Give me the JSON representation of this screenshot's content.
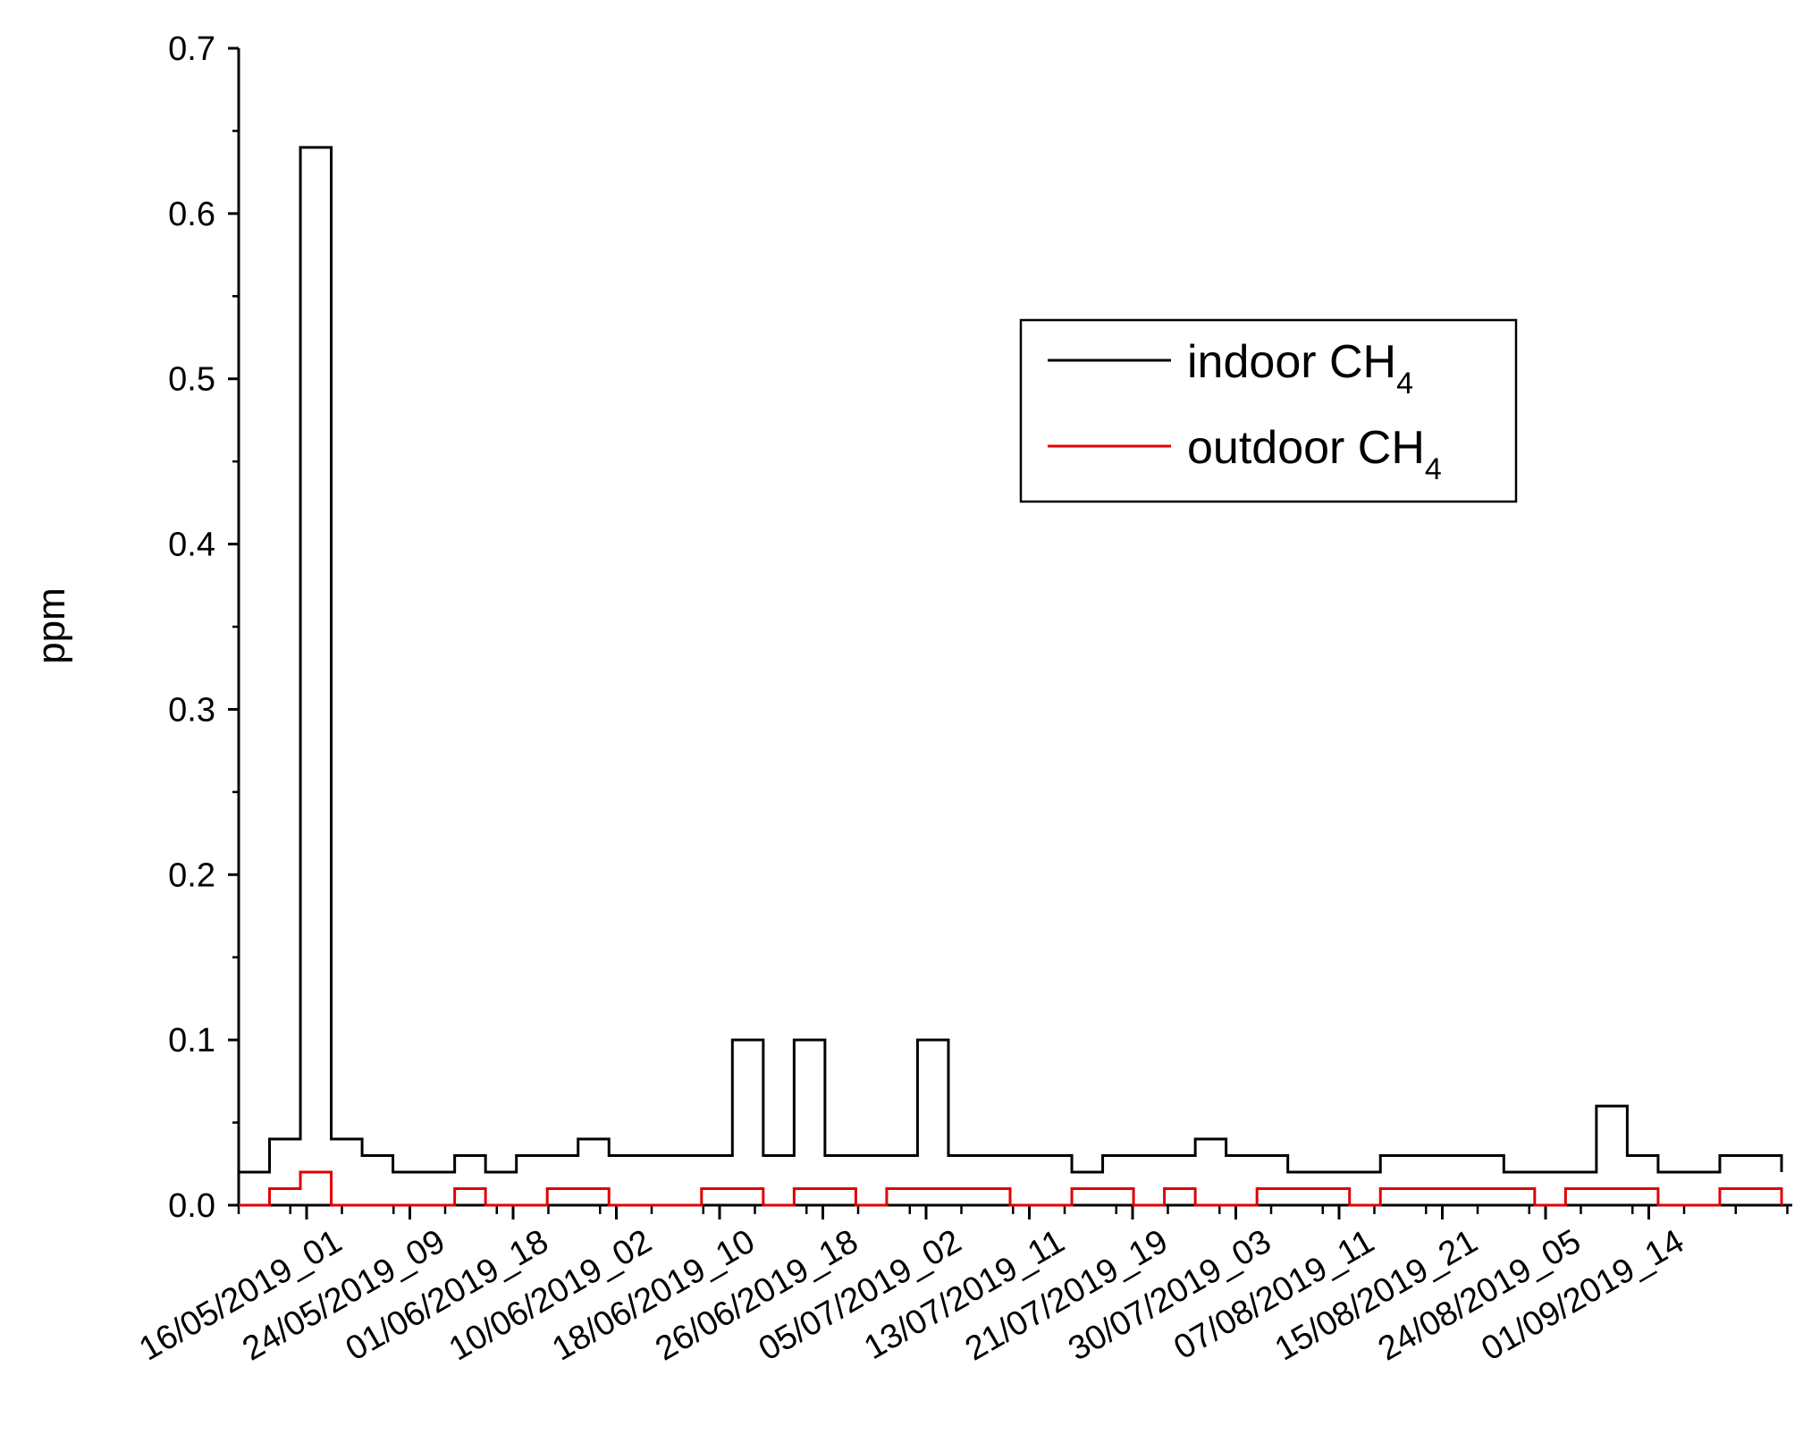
{
  "chart_data": {
    "type": "line",
    "title": "",
    "xlabel": "",
    "ylabel": "ppm",
    "ylim": [
      0,
      0.7
    ],
    "y_ticks": [
      "0.0",
      "0.1",
      "0.2",
      "0.3",
      "0.4",
      "0.5",
      "0.6",
      "0.7"
    ],
    "x_tick_labels": [
      "16/05/2019_01",
      "24/05/2019_09",
      "01/06/2019_18",
      "10/06/2019_02",
      "18/06/2019_10",
      "26/06/2019_18",
      "05/07/2019_02",
      "13/07/2019_11",
      "21/07/2019_19",
      "30/07/2019_03",
      "07/08/2019_11",
      "15/08/2019_21",
      "24/08/2019_05",
      "01/09/2019_14"
    ],
    "legend": {
      "placement": "top-right"
    },
    "series": [
      {
        "name": "indoor CH",
        "name_subscript": "4",
        "color": "#000000",
        "x": [
          0,
          2,
          4,
          6,
          8,
          10,
          12,
          14,
          16,
          18,
          20,
          22,
          24,
          26,
          28,
          30,
          32,
          34,
          36,
          38,
          40,
          42,
          44,
          46,
          48,
          50,
          52,
          54,
          56,
          58,
          60,
          62,
          64,
          66,
          68,
          70,
          72,
          74,
          76,
          78,
          80,
          82,
          84,
          86,
          88,
          90,
          92,
          94,
          96,
          98,
          100
        ],
        "values": [
          0.02,
          0.04,
          0.64,
          0.04,
          0.03,
          0.02,
          0.02,
          0.03,
          0.02,
          0.03,
          0.03,
          0.04,
          0.03,
          0.03,
          0.03,
          0.03,
          0.1,
          0.03,
          0.1,
          0.03,
          0.03,
          0.03,
          0.1,
          0.03,
          0.03,
          0.03,
          0.03,
          0.02,
          0.03,
          0.03,
          0.03,
          0.04,
          0.03,
          0.03,
          0.02,
          0.02,
          0.02,
          0.03,
          0.03,
          0.03,
          0.03,
          0.02,
          0.02,
          0.02,
          0.06,
          0.03,
          0.02,
          0.02,
          0.03,
          0.03,
          0.02
        ]
      },
      {
        "name": "outdoor CH",
        "name_subscript": "4",
        "color": "#e00000",
        "x": [
          0,
          2,
          4,
          6,
          8,
          10,
          12,
          14,
          16,
          18,
          20,
          22,
          24,
          26,
          28,
          30,
          32,
          34,
          36,
          38,
          40,
          42,
          44,
          46,
          48,
          50,
          52,
          54,
          56,
          58,
          60,
          62,
          64,
          66,
          68,
          70,
          72,
          74,
          76,
          78,
          80,
          82,
          84,
          86,
          88,
          90,
          92,
          94,
          96,
          98,
          100
        ],
        "values": [
          0.0,
          0.01,
          0.02,
          0.0,
          0.0,
          0.0,
          0.0,
          0.01,
          0.0,
          0.0,
          0.01,
          0.01,
          0.0,
          0.0,
          0.0,
          0.01,
          0.01,
          0.0,
          0.01,
          0.01,
          0.0,
          0.01,
          0.01,
          0.01,
          0.01,
          0.0,
          0.0,
          0.01,
          0.01,
          0.0,
          0.01,
          0.0,
          0.0,
          0.01,
          0.01,
          0.01,
          0.0,
          0.01,
          0.01,
          0.01,
          0.01,
          0.01,
          0.0,
          0.01,
          0.01,
          0.01,
          0.0,
          0.0,
          0.01,
          0.01,
          0.0
        ]
      }
    ]
  }
}
